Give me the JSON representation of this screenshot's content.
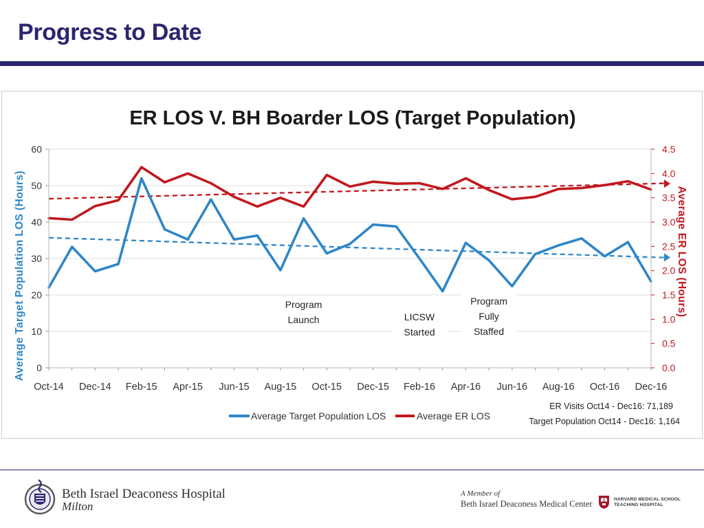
{
  "slide": {
    "title": "Progress to Date"
  },
  "footer": {
    "hospital_name": "Beth Israel Deaconess Hospital",
    "hospital_sub": "Milton",
    "member_of": "A Member of",
    "member_name": "Beth Israel Deaconess Medical Center",
    "harvard_line1": "HARVARD MEDICAL SCHOOL",
    "harvard_line2": "TEACHING HOSPITAL"
  },
  "colors": {
    "title": "#2b2570",
    "blue": "#2e86c8",
    "red": "#c0181e"
  },
  "chart_data": {
    "type": "line",
    "title": "ER LOS V. BH Boarder LOS (Target Population)",
    "xlabel": "",
    "ylabel": "Average Target Population LOS (Hours)",
    "y2label": "Average ER LOS (Hours)",
    "ylim": [
      0,
      60
    ],
    "y2lim": [
      0.0,
      4.5
    ],
    "yticks": [
      "0",
      "10",
      "20",
      "30",
      "40",
      "50",
      "60"
    ],
    "y2ticks": [
      "0.0",
      "0.5",
      "1.0",
      "1.5",
      "2.0",
      "2.5",
      "3.0",
      "3.5",
      "4.0",
      "4.5"
    ],
    "x": [
      "Oct-14",
      "Nov-14",
      "Dec-14",
      "Jan-15",
      "Feb-15",
      "Mar-15",
      "Apr-15",
      "May-15",
      "Jun-15",
      "Jul-15",
      "Aug-15",
      "Sep-15",
      "Oct-15",
      "Nov-15",
      "Dec-15",
      "Jan-16",
      "Feb-16",
      "Mar-16",
      "Apr-16",
      "May-16",
      "Jun-16",
      "Jul-16",
      "Aug-16",
      "Sep-16",
      "Oct-16",
      "Nov-16",
      "Dec-16"
    ],
    "xtick_labels": [
      "Oct-14",
      "Dec-14",
      "Feb-15",
      "Apr-15",
      "Jun-15",
      "Aug-15",
      "Oct-15",
      "Dec-15",
      "Feb-16",
      "Apr-16",
      "Jun-16",
      "Aug-16",
      "Oct-16",
      "Dec-16"
    ],
    "series": [
      {
        "name": "Average Target Population LOS",
        "axis": "left",
        "values": [
          22,
          33.2,
          26.5,
          28.5,
          52,
          38,
          35.2,
          46.2,
          35.2,
          36.3,
          26.8,
          41,
          31.4,
          34,
          39.3,
          38.8,
          30,
          21,
          34.3,
          29.5,
          22.4,
          31.2,
          33.6,
          35.5,
          30.6,
          34.5,
          23.7
        ]
      },
      {
        "name": "Average ER LOS",
        "axis": "right",
        "values": [
          3.08,
          3.05,
          3.33,
          3.45,
          4.13,
          3.82,
          4.0,
          3.8,
          3.52,
          3.32,
          3.5,
          3.32,
          3.97,
          3.73,
          3.83,
          3.79,
          3.8,
          3.68,
          3.9,
          3.66,
          3.47,
          3.52,
          3.68,
          3.7,
          3.76,
          3.84,
          3.67
        ]
      }
    ],
    "trendlines": [
      {
        "series": "Average Target Population LOS",
        "axis": "left",
        "start": 35.7,
        "end": 30.3
      },
      {
        "series": "Average ER LOS",
        "axis": "right",
        "start": 3.48,
        "end": 3.79
      }
    ],
    "annotations": [
      {
        "text": [
          "Program",
          "Launch"
        ],
        "at": "Sep-15"
      },
      {
        "text": [
          "LICSW",
          "Started"
        ],
        "at": "Feb-16"
      },
      {
        "text": [
          "Program",
          "Fully",
          "Staffed"
        ],
        "at": "May-16"
      }
    ],
    "notes": [
      "ER Visits Oct14 - Dec16: 71,189",
      "Target Population Oct14 - Dec16: 1,164"
    ],
    "legend_position": "bottom",
    "grid": true
  }
}
